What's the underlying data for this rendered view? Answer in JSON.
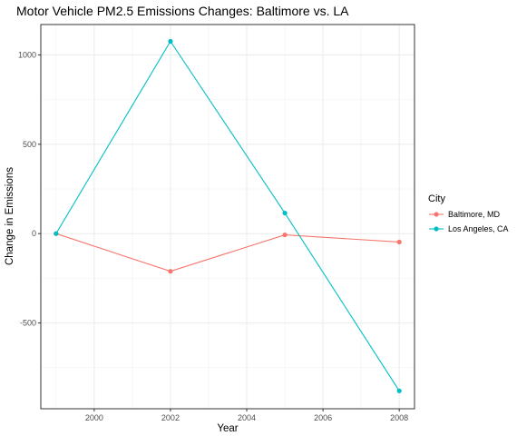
{
  "chart_data": {
    "type": "line",
    "title": "Motor Vehicle PM2.5 Emissions Changes: Baltimore vs. LA",
    "xlabel": "Year",
    "ylabel": "Change in Emissions",
    "x": [
      1999,
      2002,
      2005,
      2008
    ],
    "xlim": [
      1998.6,
      2008.4
    ],
    "ylim": [
      -980,
      1170
    ],
    "x_ticks": [
      2000,
      2002,
      2004,
      2006,
      2008
    ],
    "x_tick_labels": [
      "2000",
      "2002",
      "2004",
      "2006",
      "2008"
    ],
    "y_ticks": [
      -500,
      0,
      500,
      1000
    ],
    "y_tick_labels": [
      "-500",
      "0",
      "500",
      "1000"
    ],
    "grid": true,
    "legend": {
      "title": "City",
      "position": "right"
    },
    "series": [
      {
        "name": "Baltimore, MD",
        "color": "#F8766D",
        "values": [
          0,
          -211,
          -7,
          -47
        ]
      },
      {
        "name": "Los Angeles, CA",
        "color": "#00BFC4",
        "values": [
          0,
          1076,
          115,
          -880
        ]
      }
    ]
  }
}
